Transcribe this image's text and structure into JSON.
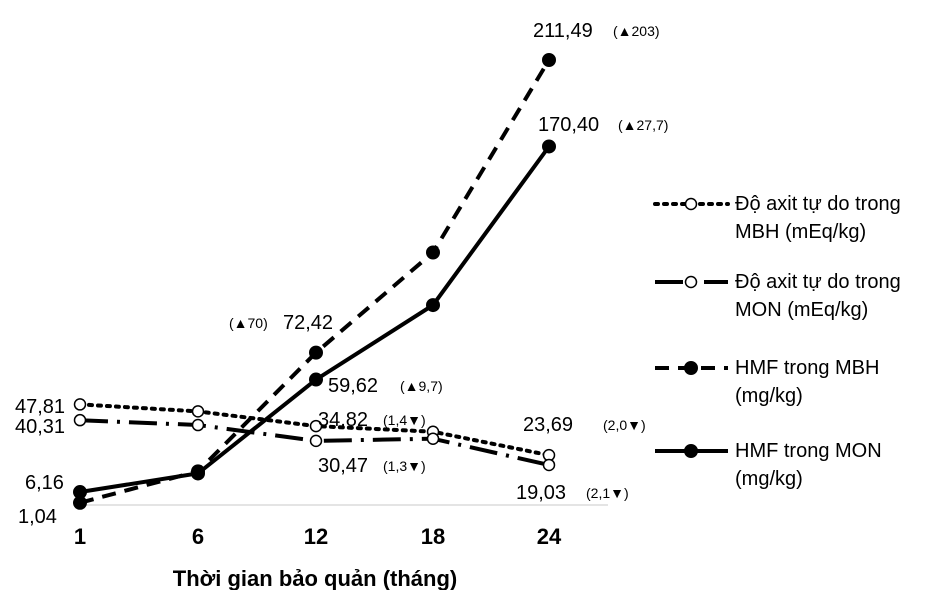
{
  "chart_data": {
    "type": "line",
    "title": "",
    "xlabel": "Thời gian bảo quản (tháng)",
    "ylabel": "",
    "categories": [
      "1",
      "6",
      "12",
      "18",
      "24"
    ],
    "series": [
      {
        "name": "Độ axit tự do trong MBH (mEq/kg)",
        "style": "dotted",
        "marker": "open-circle",
        "color": "#000000",
        "values": [
          47.81,
          44.5,
          37.5,
          34.82,
          23.69
        ]
      },
      {
        "name": "Độ axit tự do trong MON (mEq/kg)",
        "style": "dash-dot",
        "marker": "open-circle",
        "color": "#000000",
        "values": [
          40.31,
          38.0,
          30.47,
          31.5,
          19.03
        ]
      },
      {
        "name": "HMF trong MBH (mg/kg)",
        "style": "dashed",
        "marker": "filled-circle",
        "color": "#000000",
        "values": [
          1.04,
          16.0,
          72.42,
          120.0,
          211.49
        ]
      },
      {
        "name": "HMF trong MON (mg/kg)",
        "style": "solid",
        "marker": "filled-circle",
        "color": "#000000",
        "values": [
          6.16,
          15.0,
          59.62,
          95.0,
          170.4
        ]
      }
    ],
    "annotations": [
      {
        "series": 0,
        "index": 0,
        "text": "47,81",
        "note": ""
      },
      {
        "series": 1,
        "index": 0,
        "text": "40,31",
        "note": ""
      },
      {
        "series": 3,
        "index": 0,
        "text": "6,16",
        "note": ""
      },
      {
        "series": 2,
        "index": 0,
        "text": "1,04",
        "note": ""
      },
      {
        "series": 2,
        "index": 2,
        "text": "72,42",
        "note": "(▲70)"
      },
      {
        "series": 3,
        "index": 2,
        "text": "59,62",
        "note": "(▲9,7)"
      },
      {
        "series": 0,
        "index": 3,
        "text": "34,82",
        "note": "(1,4▼)"
      },
      {
        "series": 1,
        "index": 2,
        "text": "30,47",
        "note": "(1,3▼)"
      },
      {
        "series": 2,
        "index": 4,
        "text": "211,49",
        "note": "(▲203)"
      },
      {
        "series": 3,
        "index": 4,
        "text": "170,40",
        "note": "(▲27,7)"
      },
      {
        "series": 0,
        "index": 4,
        "text": "23,69",
        "note": "(2,0▼)"
      },
      {
        "series": 1,
        "index": 4,
        "text": "19,03",
        "note": "(2,1▼)"
      }
    ],
    "legend_position": "right",
    "grid": false,
    "ylim": [
      0,
      220
    ]
  }
}
